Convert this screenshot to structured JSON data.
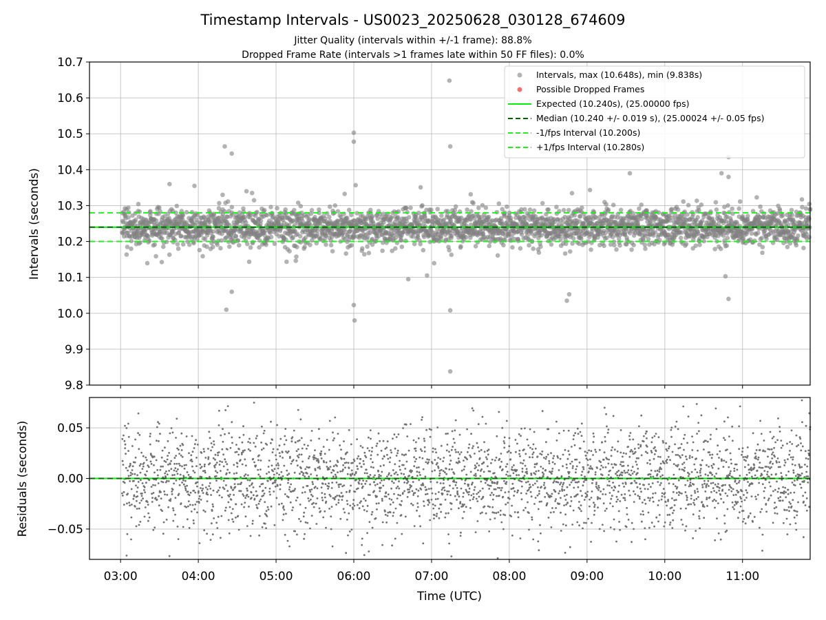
{
  "chart_data": [
    {
      "type": "scatter",
      "title": "Timestamp Intervals - US0023_20250628_030128_674609",
      "subtitle_lines": [
        "Jitter Quality (intervals within +/-1 frame): 88.8%",
        "Dropped Frame Rate (intervals >1 frames late within 50 FF files): 0.0%"
      ],
      "ylabel": "Intervals (seconds)",
      "xlim": [
        2.6,
        11.87
      ],
      "ylim": [
        9.8,
        10.7
      ],
      "ytick_labels": [
        "9.8",
        "9.9",
        "10.0",
        "10.1",
        "10.2",
        "10.3",
        "10.4",
        "10.5",
        "10.6",
        "10.7"
      ],
      "yticks": [
        9.8,
        9.9,
        10.0,
        10.1,
        10.2,
        10.3,
        10.4,
        10.5,
        10.6,
        10.7
      ],
      "grid": true,
      "legend_position": "top-right",
      "series": [
        {
          "name": "Intervals, max (10.648s), min (9.838s)",
          "kind": "scatter",
          "color": "#808080",
          "center": 10.24,
          "spread": 0.025,
          "count": 2900,
          "x_range": [
            3.02,
            11.87
          ]
        },
        {
          "name": "Possible Dropped Frames",
          "kind": "scatter",
          "color": "#f08080",
          "values": []
        },
        {
          "name": "Expected (10.240s), (25.00000 fps)",
          "kind": "hline",
          "y": 10.24,
          "color": "#00ee00",
          "style": "solid"
        },
        {
          "name": "Median (10.240 +/- 0.019 s), (25.00024 +/- 0.05 fps)",
          "kind": "hline",
          "y": 10.24,
          "color": "#006400",
          "style": "dashed"
        },
        {
          "name": "-1/fps Interval (10.200s)",
          "kind": "hline",
          "y": 10.2,
          "color": "#22ee22",
          "style": "dashed"
        },
        {
          "name": "+1/fps Interval (10.280s)",
          "kind": "hline",
          "y": 10.28,
          "color": "#22ee22",
          "style": "dashed"
        }
      ],
      "outliers": [
        [
          4.34,
          10.465
        ],
        [
          4.43,
          10.445
        ],
        [
          4.36,
          10.01
        ],
        [
          4.43,
          10.06
        ],
        [
          6.0,
          10.503
        ],
        [
          6.0,
          10.478
        ],
        [
          6.0,
          10.023
        ],
        [
          6.01,
          9.98
        ],
        [
          7.23,
          10.648
        ],
        [
          7.24,
          10.465
        ],
        [
          7.24,
          10.008
        ],
        [
          7.24,
          9.838
        ],
        [
          9.55,
          10.39
        ],
        [
          10.82,
          10.435
        ],
        [
          10.82,
          10.04
        ],
        [
          10.78,
          10.103
        ],
        [
          10.73,
          10.39
        ],
        [
          10.82,
          10.38
        ],
        [
          8.77,
          10.053
        ],
        [
          8.74,
          10.035
        ],
        [
          6.7,
          10.095
        ],
        [
          3.63,
          10.36
        ],
        [
          3.95,
          10.355
        ],
        [
          4.62,
          10.34
        ]
      ]
    },
    {
      "type": "scatter",
      "ylabel": "Residuals (seconds)",
      "xlabel": "Time (UTC)",
      "xlim": [
        2.6,
        11.87
      ],
      "ylim": [
        -0.08,
        0.08
      ],
      "yticks": [
        -0.05,
        0.0,
        0.05
      ],
      "ytick_labels": [
        "−0.05",
        "0.00",
        "0.05"
      ],
      "xticks": [
        3,
        4,
        5,
        6,
        7,
        8,
        9,
        10,
        11
      ],
      "xtick_labels": [
        "03:00",
        "04:00",
        "05:00",
        "06:00",
        "07:00",
        "08:00",
        "09:00",
        "10:00",
        "11:00"
      ],
      "grid": true,
      "series": [
        {
          "name": "Residuals",
          "kind": "scatter",
          "color": "#808080",
          "spread": 0.025,
          "count": 2900,
          "x_range": [
            3.02,
            11.87
          ]
        },
        {
          "name": "Zero",
          "kind": "hline",
          "y": 0.0,
          "color": "#00ee00",
          "style": "solid"
        },
        {
          "name": "Median",
          "kind": "hline",
          "y": 0.0,
          "color": "#006400",
          "style": "dashed"
        }
      ]
    }
  ]
}
